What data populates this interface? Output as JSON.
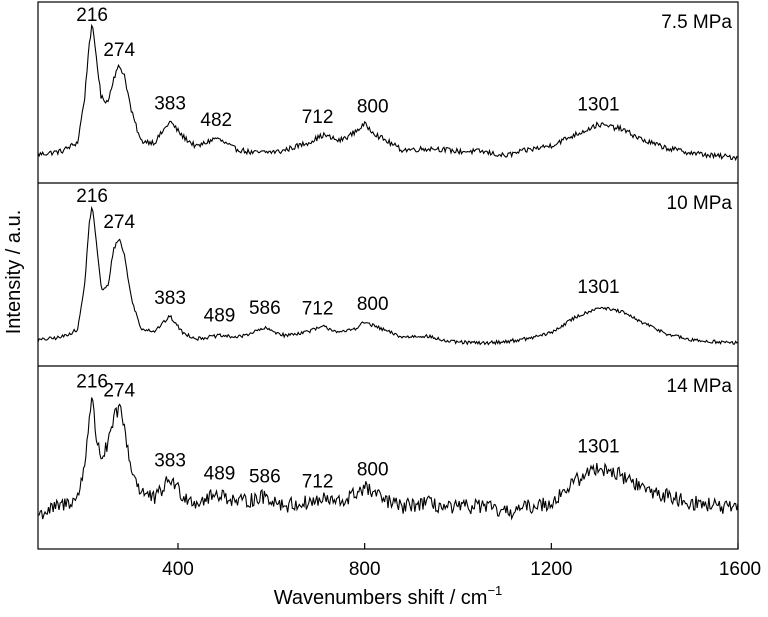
{
  "chart_data": {
    "type": "line",
    "xlabel": "Wavenumbers shift / cm",
    "xlabel_superscript": "−1",
    "ylabel": "Intensity / a.u.",
    "xlim": [
      100,
      1600
    ],
    "x_ticks": [
      400,
      800,
      1200,
      1600
    ],
    "x_tick_labels": [
      "400",
      "800",
      "1200",
      "1600"
    ],
    "y_ticks_shown": false,
    "grid": false,
    "legend": "none",
    "stacked_panels": true,
    "line_color": "#000000",
    "series": [
      {
        "name": "7.5 MPa",
        "peaks": [
          216,
          274,
          383,
          482,
          712,
          800,
          1301
        ],
        "peak_labels": [
          "216",
          "274",
          "383",
          "482",
          "712",
          "800",
          "1301"
        ],
        "points": [
          [
            100,
            0.07
          ],
          [
            150,
            0.09
          ],
          [
            185,
            0.15
          ],
          [
            200,
            0.45
          ],
          [
            210,
            0.82
          ],
          [
            216,
            0.93
          ],
          [
            224,
            0.75
          ],
          [
            235,
            0.45
          ],
          [
            250,
            0.42
          ],
          [
            262,
            0.58
          ],
          [
            274,
            0.66
          ],
          [
            285,
            0.6
          ],
          [
            300,
            0.36
          ],
          [
            320,
            0.16
          ],
          [
            350,
            0.15
          ],
          [
            383,
            0.29
          ],
          [
            410,
            0.19
          ],
          [
            440,
            0.12
          ],
          [
            482,
            0.18
          ],
          [
            520,
            0.11
          ],
          [
            560,
            0.08
          ],
          [
            620,
            0.09
          ],
          [
            680,
            0.15
          ],
          [
            712,
            0.2
          ],
          [
            745,
            0.16
          ],
          [
            770,
            0.2
          ],
          [
            800,
            0.27
          ],
          [
            830,
            0.19
          ],
          [
            880,
            0.1
          ],
          [
            950,
            0.11
          ],
          [
            1000,
            0.09
          ],
          [
            1050,
            0.09
          ],
          [
            1100,
            0.06
          ],
          [
            1150,
            0.1
          ],
          [
            1200,
            0.13
          ],
          [
            1250,
            0.2
          ],
          [
            1301,
            0.27
          ],
          [
            1350,
            0.24
          ],
          [
            1400,
            0.16
          ],
          [
            1450,
            0.11
          ],
          [
            1500,
            0.08
          ],
          [
            1550,
            0.06
          ],
          [
            1600,
            0.05
          ]
        ]
      },
      {
        "name": "10 MPa",
        "peaks": [
          216,
          274,
          383,
          489,
          586,
          712,
          800,
          1301
        ],
        "peak_labels": [
          "216",
          "274",
          "383",
          "489",
          "586",
          "712",
          "800",
          "1301"
        ],
        "points": [
          [
            100,
            0.05
          ],
          [
            150,
            0.07
          ],
          [
            185,
            0.12
          ],
          [
            200,
            0.42
          ],
          [
            210,
            0.84
          ],
          [
            216,
            0.94
          ],
          [
            224,
            0.74
          ],
          [
            236,
            0.38
          ],
          [
            250,
            0.41
          ],
          [
            262,
            0.66
          ],
          [
            274,
            0.73
          ],
          [
            285,
            0.62
          ],
          [
            300,
            0.33
          ],
          [
            320,
            0.13
          ],
          [
            350,
            0.11
          ],
          [
            383,
            0.21
          ],
          [
            410,
            0.1
          ],
          [
            440,
            0.06
          ],
          [
            489,
            0.08
          ],
          [
            530,
            0.07
          ],
          [
            586,
            0.13
          ],
          [
            630,
            0.08
          ],
          [
            680,
            0.11
          ],
          [
            712,
            0.14
          ],
          [
            750,
            0.1
          ],
          [
            780,
            0.13
          ],
          [
            800,
            0.17
          ],
          [
            840,
            0.12
          ],
          [
            880,
            0.07
          ],
          [
            930,
            0.08
          ],
          [
            980,
            0.04
          ],
          [
            1050,
            0.03
          ],
          [
            1100,
            0.04
          ],
          [
            1150,
            0.06
          ],
          [
            1200,
            0.1
          ],
          [
            1250,
            0.2
          ],
          [
            1301,
            0.27
          ],
          [
            1350,
            0.24
          ],
          [
            1400,
            0.16
          ],
          [
            1450,
            0.09
          ],
          [
            1500,
            0.05
          ],
          [
            1550,
            0.04
          ],
          [
            1600,
            0.03
          ]
        ]
      },
      {
        "name": "14 MPa",
        "peaks": [
          216,
          274,
          383,
          489,
          586,
          712,
          800,
          1301
        ],
        "peak_labels": [
          "216",
          "274",
          "383",
          "489",
          "586",
          "712",
          "800",
          "1301"
        ],
        "points": [
          [
            100,
            0.12
          ],
          [
            150,
            0.18
          ],
          [
            185,
            0.23
          ],
          [
            200,
            0.45
          ],
          [
            210,
            0.78
          ],
          [
            216,
            0.9
          ],
          [
            224,
            0.65
          ],
          [
            236,
            0.5
          ],
          [
            250,
            0.58
          ],
          [
            262,
            0.75
          ],
          [
            274,
            0.84
          ],
          [
            285,
            0.7
          ],
          [
            300,
            0.42
          ],
          [
            320,
            0.28
          ],
          [
            350,
            0.22
          ],
          [
            383,
            0.36
          ],
          [
            410,
            0.25
          ],
          [
            440,
            0.2
          ],
          [
            489,
            0.26
          ],
          [
            530,
            0.2
          ],
          [
            586,
            0.24
          ],
          [
            630,
            0.18
          ],
          [
            680,
            0.2
          ],
          [
            712,
            0.22
          ],
          [
            750,
            0.2
          ],
          [
            780,
            0.26
          ],
          [
            800,
            0.3
          ],
          [
            840,
            0.22
          ],
          [
            880,
            0.17
          ],
          [
            930,
            0.2
          ],
          [
            980,
            0.16
          ],
          [
            1050,
            0.18
          ],
          [
            1100,
            0.13
          ],
          [
            1150,
            0.17
          ],
          [
            1200,
            0.2
          ],
          [
            1250,
            0.34
          ],
          [
            1301,
            0.44
          ],
          [
            1350,
            0.38
          ],
          [
            1400,
            0.29
          ],
          [
            1450,
            0.24
          ],
          [
            1500,
            0.2
          ],
          [
            1550,
            0.18
          ],
          [
            1600,
            0.15
          ]
        ]
      }
    ]
  }
}
